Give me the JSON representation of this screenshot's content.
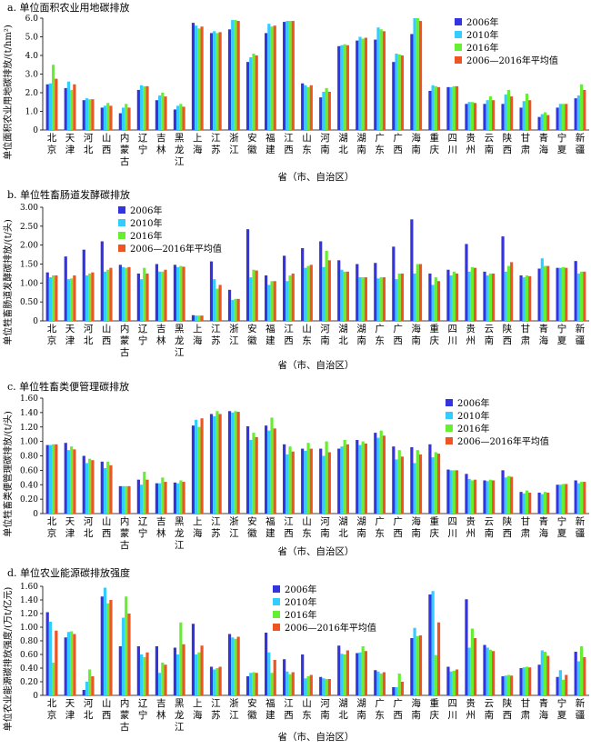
{
  "colors": {
    "s2006": "#3333e0",
    "s2010": "#33ccff",
    "s2016": "#66ee33",
    "savg": "#ee5522"
  },
  "chart_data": [
    {
      "type": "bar",
      "title": "a. 单位面积农业用地碳排放",
      "ylabel": "单位面积农业用地碳排放/(t/hm²)",
      "xlabel": "省（市、自治区）",
      "ylim": [
        0,
        6
      ],
      "yticks": [
        "0",
        "1.0",
        "2.0",
        "3.0",
        "4.0",
        "5.0",
        "6.0"
      ],
      "legend_position": "top-right",
      "categories": [
        "北京",
        "天津",
        "河北",
        "山西",
        "内蒙古",
        "辽宁",
        "吉林",
        "黑龙江",
        "上海",
        "江苏",
        "浙江",
        "安徽",
        "福建",
        "江西",
        "山东",
        "河南",
        "湖北",
        "湖南",
        "广东",
        "广西",
        "海南",
        "重庆",
        "四川",
        "贵州",
        "云南",
        "陕西",
        "甘肃",
        "青海",
        "宁夏",
        "新疆"
      ],
      "series": [
        {
          "name": "2006年",
          "values": [
            2.45,
            2.25,
            1.6,
            1.2,
            0.9,
            2.15,
            1.6,
            1.1,
            5.75,
            5.2,
            5.4,
            3.65,
            5.2,
            5.8,
            2.5,
            1.75,
            4.5,
            4.8,
            4.85,
            3.65,
            5.15,
            2.1,
            2.3,
            1.4,
            1.4,
            1.4,
            1.2,
            0.7,
            1.2,
            1.7
          ]
        },
        {
          "name": "2010年",
          "values": [
            2.5,
            2.6,
            1.7,
            1.3,
            1.2,
            2.4,
            1.85,
            1.3,
            5.6,
            5.3,
            5.9,
            3.9,
            5.7,
            5.85,
            2.4,
            2.05,
            4.55,
            5.0,
            5.5,
            4.1,
            6.0,
            2.4,
            2.3,
            1.5,
            1.6,
            1.9,
            1.55,
            0.85,
            1.4,
            1.85
          ]
        },
        {
          "name": "2016年",
          "values": [
            3.5,
            2.15,
            1.65,
            1.45,
            1.4,
            2.35,
            2.0,
            1.4,
            5.45,
            5.2,
            5.9,
            4.1,
            5.55,
            5.85,
            2.3,
            2.25,
            4.6,
            4.9,
            5.4,
            4.05,
            6.0,
            2.35,
            2.35,
            1.5,
            1.8,
            2.15,
            1.95,
            0.95,
            1.4,
            2.45
          ]
        },
        {
          "name": "2006—2016年平均值",
          "values": [
            2.75,
            2.45,
            1.65,
            1.3,
            1.2,
            2.35,
            1.8,
            1.25,
            5.55,
            5.25,
            5.85,
            4.0,
            5.6,
            5.85,
            2.4,
            2.05,
            4.55,
            4.95,
            5.3,
            4.0,
            5.85,
            2.3,
            2.35,
            1.45,
            1.6,
            1.8,
            1.6,
            0.8,
            1.4,
            2.15
          ]
        }
      ]
    },
    {
      "type": "bar",
      "title": "b. 单位牲畜肠道发酵碳排放",
      "ylabel": "单位牲畜肠道发酵碳排放/(t/头)",
      "xlabel": "省（市、自治区）",
      "ylim": [
        0,
        3
      ],
      "yticks": [
        "0",
        "0.50",
        "1.00",
        "1.50",
        "2.00",
        "2.50",
        "3.00"
      ],
      "legend_position": "top-right",
      "categories": [
        "北京",
        "天津",
        "河北",
        "山西",
        "内蒙古",
        "辽宁",
        "吉林",
        "黑龙江",
        "上海",
        "江苏",
        "浙江",
        "安徽",
        "福建",
        "江西",
        "山东",
        "河南",
        "湖北",
        "湖南",
        "广东",
        "广西",
        "海南",
        "重庆",
        "四川",
        "贵州",
        "云南",
        "陕西",
        "甘肃",
        "青海",
        "宁夏",
        "新疆"
      ],
      "series": [
        {
          "name": "2006年",
          "values": [
            1.28,
            1.7,
            1.88,
            2.1,
            1.48,
            1.25,
            1.5,
            1.48,
            0.15,
            1.57,
            0.82,
            2.42,
            1.2,
            1.72,
            1.92,
            2.1,
            1.6,
            1.5,
            1.53,
            1.96,
            2.68,
            1.25,
            1.35,
            2.03,
            1.3,
            2.23,
            1.2,
            1.38,
            1.4,
            1.58
          ]
        },
        {
          "name": "2010年",
          "values": [
            1.15,
            1.1,
            1.2,
            1.3,
            1.42,
            1.1,
            1.3,
            1.42,
            0.14,
            1.1,
            0.55,
            1.15,
            0.95,
            1.05,
            1.4,
            1.42,
            1.35,
            1.15,
            1.12,
            1.1,
            1.25,
            0.95,
            1.2,
            1.3,
            1.2,
            1.3,
            1.15,
            1.65,
            1.4,
            1.25
          ]
        },
        {
          "name": "2016年",
          "values": [
            1.2,
            1.12,
            1.25,
            1.35,
            1.4,
            1.4,
            1.3,
            1.45,
            0.14,
            0.85,
            0.58,
            1.35,
            1.05,
            1.2,
            1.45,
            1.85,
            1.3,
            1.15,
            1.15,
            1.25,
            1.5,
            1.15,
            1.3,
            1.42,
            1.25,
            1.45,
            1.2,
            1.45,
            1.42,
            1.3
          ]
        },
        {
          "name": "2006—2016年平均值",
          "values": [
            1.2,
            1.2,
            1.28,
            1.4,
            1.42,
            1.25,
            1.35,
            1.43,
            0.14,
            0.95,
            0.58,
            1.33,
            1.05,
            1.25,
            1.48,
            1.6,
            1.3,
            1.15,
            1.15,
            1.25,
            1.5,
            1.05,
            1.25,
            1.4,
            1.25,
            1.55,
            1.18,
            1.45,
            1.4,
            1.3
          ]
        }
      ]
    },
    {
      "type": "bar",
      "title": "c. 单位牲畜类便管理碳排放",
      "ylabel": "单位牲畜类便管理碳排放/(t/头)",
      "xlabel": "省（市、自治区）",
      "ylim": [
        0,
        1.6
      ],
      "yticks": [
        "0",
        "0.20",
        "0.40",
        "0.60",
        "0.80",
        "1.00",
        "1.20",
        "1.40",
        "1.60"
      ],
      "legend_position": "top-right",
      "categories": [
        "北京",
        "天津",
        "河北",
        "山西",
        "内蒙古",
        "辽宁",
        "吉林",
        "黑龙江",
        "上海",
        "江苏",
        "浙江",
        "安徽",
        "福建",
        "江西",
        "山东",
        "河南",
        "湖北",
        "湖南",
        "广东",
        "广西",
        "海南",
        "重庆",
        "四川",
        "贵州",
        "云南",
        "陕西",
        "甘肃",
        "青海",
        "宁夏",
        "新疆"
      ],
      "series": [
        {
          "name": "2006年",
          "values": [
            0.95,
            0.98,
            0.8,
            0.72,
            0.38,
            0.47,
            0.42,
            0.43,
            1.22,
            1.38,
            1.42,
            1.21,
            1.22,
            0.96,
            0.9,
            0.9,
            0.9,
            1.02,
            1.12,
            0.93,
            0.92,
            0.96,
            0.61,
            0.55,
            0.46,
            0.6,
            0.3,
            0.29,
            0.4,
            0.46
          ]
        },
        {
          "name": "2010年",
          "values": [
            0.95,
            0.88,
            0.7,
            0.63,
            0.38,
            0.4,
            0.42,
            0.42,
            1.3,
            1.35,
            1.4,
            1.02,
            1.15,
            0.82,
            0.87,
            0.8,
            0.93,
            0.95,
            1.05,
            0.75,
            0.7,
            0.78,
            0.6,
            0.48,
            0.45,
            0.5,
            0.28,
            0.27,
            0.4,
            0.42
          ]
        },
        {
          "name": "2016年",
          "values": [
            0.96,
            0.93,
            0.76,
            0.72,
            0.38,
            0.58,
            0.5,
            0.46,
            1.2,
            1.42,
            1.42,
            1.12,
            1.33,
            0.93,
            0.98,
            1.0,
            1.02,
            1.0,
            1.15,
            0.88,
            0.88,
            0.85,
            0.6,
            0.46,
            0.47,
            0.52,
            0.32,
            0.3,
            0.41,
            0.44
          ]
        },
        {
          "name": "2006—2016年平均值",
          "values": [
            0.96,
            0.89,
            0.74,
            0.67,
            0.38,
            0.47,
            0.44,
            0.44,
            1.32,
            1.38,
            1.41,
            1.06,
            1.18,
            0.86,
            0.9,
            0.85,
            0.96,
            0.97,
            1.08,
            0.79,
            0.82,
            0.83,
            0.6,
            0.47,
            0.46,
            0.51,
            0.29,
            0.29,
            0.41,
            0.44
          ]
        }
      ]
    },
    {
      "type": "bar",
      "title": "d. 单位农业能源碳排放强度",
      "ylabel": "单位农业能源碳排放强度/(万t/亿元)",
      "xlabel": "省（市、自治区）",
      "ylim": [
        0,
        1.6
      ],
      "yticks": [
        "0",
        "0.20",
        "0.40",
        "0.60",
        "0.80",
        "1.00",
        "1.20",
        "1.40",
        "1.60"
      ],
      "legend_position": "top-center",
      "categories": [
        "北京",
        "天津",
        "河北",
        "山西",
        "内蒙古",
        "辽宁",
        "吉林",
        "黑龙江",
        "上海",
        "江苏",
        "浙江",
        "安徽",
        "福建",
        "江西",
        "山东",
        "河南",
        "湖北",
        "湖南",
        "广东",
        "广西",
        "海南",
        "重庆",
        "四川",
        "贵州",
        "云南",
        "陕西",
        "甘肃",
        "青海",
        "宁夏",
        "新疆"
      ],
      "series": [
        {
          "name": "2006年",
          "values": [
            1.22,
            0.85,
            0.08,
            1.45,
            0.72,
            0.72,
            0.72,
            0.7,
            1.05,
            0.42,
            0.9,
            0.28,
            0.92,
            0.53,
            0.6,
            0.27,
            0.73,
            0.62,
            0.37,
            0.12,
            0.84,
            1.48,
            0.42,
            1.41,
            0.74,
            0.28,
            0.4,
            0.45,
            0.27,
            0.64
          ]
        },
        {
          "name": "2010年",
          "values": [
            1.08,
            0.93,
            0.2,
            1.58,
            1.14,
            0.6,
            0.33,
            0.6,
            0.6,
            0.38,
            0.85,
            0.33,
            0.63,
            0.35,
            0.25,
            0.25,
            0.61,
            0.63,
            0.35,
            0.12,
            0.99,
            1.53,
            0.35,
            0.7,
            0.7,
            0.29,
            0.41,
            0.66,
            0.37,
            0.5
          ]
        },
        {
          "name": "2016年",
          "values": [
            0.48,
            0.94,
            0.38,
            1.35,
            1.45,
            0.56,
            0.48,
            1.07,
            0.63,
            0.4,
            0.83,
            0.34,
            0.33,
            0.31,
            0.28,
            0.24,
            0.6,
            0.72,
            0.32,
            0.32,
            0.87,
            0.59,
            0.36,
            0.98,
            0.67,
            0.3,
            0.42,
            0.64,
            0.23,
            0.72
          ]
        },
        {
          "name": "2006—2016年平均值",
          "values": [
            0.95,
            0.9,
            0.28,
            1.4,
            1.2,
            0.63,
            0.45,
            0.75,
            0.73,
            0.42,
            0.86,
            0.33,
            0.52,
            0.34,
            0.3,
            0.24,
            0.66,
            0.65,
            0.34,
            0.2,
            0.88,
            1.07,
            0.38,
            0.84,
            0.65,
            0.29,
            0.41,
            0.58,
            0.3,
            0.56
          ]
        }
      ]
    }
  ]
}
